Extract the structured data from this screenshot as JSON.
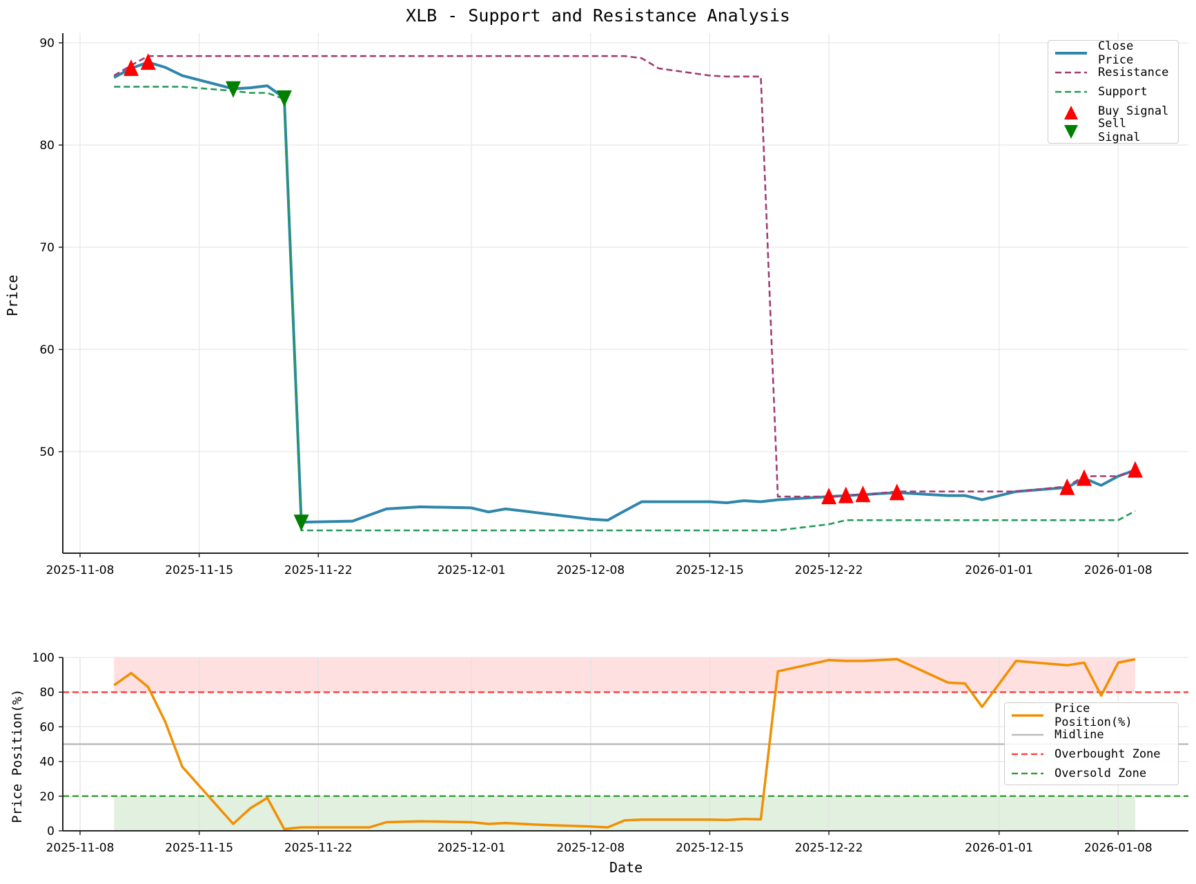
{
  "chart_data": [
    {
      "type": "line",
      "title": "XLB - Support and Resistance Analysis",
      "xlabel": "",
      "ylabel": "Price",
      "ylim": [
        40.1,
        91.0
      ],
      "yticks": [
        50,
        60,
        70,
        80,
        90
      ],
      "xticks": [
        "2025-11-08",
        "2025-11-15",
        "2025-11-22",
        "2025-12-01",
        "2025-12-08",
        "2025-12-15",
        "2025-12-22",
        "2026-01-01",
        "2026-01-08"
      ],
      "xlim": [
        "2025-11-07",
        "2026-01-12"
      ],
      "grid": true,
      "legend_position": "upper right",
      "x": [
        "2025-11-10",
        "2025-11-11",
        "2025-11-12",
        "2025-11-13",
        "2025-11-14",
        "2025-11-17",
        "2025-11-18",
        "2025-11-19",
        "2025-11-20",
        "2025-11-21",
        "2025-11-24",
        "2025-11-25",
        "2025-11-26",
        "2025-11-28",
        "2025-12-01",
        "2025-12-02",
        "2025-12-03",
        "2025-12-04",
        "2025-12-05",
        "2025-12-08",
        "2025-12-09",
        "2025-12-10",
        "2025-12-11",
        "2025-12-12",
        "2025-12-15",
        "2025-12-16",
        "2025-12-17",
        "2025-12-18",
        "2025-12-19",
        "2025-12-22",
        "2025-12-23",
        "2025-12-24",
        "2025-12-26",
        "2025-12-29",
        "2025-12-30",
        "2025-12-31",
        "2026-01-02",
        "2026-01-05",
        "2026-01-06",
        "2026-01-07",
        "2026-01-08",
        "2026-01-09"
      ],
      "series": [
        {
          "name": "Close Price",
          "color": "#2E86AB",
          "style": "solid",
          "values": [
            86.6,
            87.5,
            88.1,
            87.6,
            86.8,
            85.5,
            85.6,
            85.8,
            84.6,
            43.1,
            43.2,
            43.8,
            44.4,
            44.6,
            44.5,
            44.1,
            44.4,
            44.2,
            44.0,
            43.4,
            43.3,
            44.2,
            45.1,
            45.1,
            45.1,
            45.0,
            45.2,
            45.1,
            45.3,
            45.6,
            45.7,
            45.8,
            46.0,
            45.7,
            45.7,
            45.3,
            46.1,
            46.5,
            47.4,
            46.7,
            47.6,
            48.2
          ]
        },
        {
          "name": "Resistance",
          "color": "#A23B72",
          "style": "dashed",
          "values": [
            86.8,
            87.8,
            88.7,
            88.7,
            88.7,
            88.7,
            88.7,
            88.7,
            88.7,
            88.7,
            88.7,
            88.7,
            88.7,
            88.7,
            88.7,
            88.7,
            88.7,
            88.7,
            88.7,
            88.7,
            88.7,
            88.7,
            88.5,
            87.5,
            86.8,
            86.7,
            86.7,
            86.7,
            45.6,
            45.6,
            45.7,
            45.8,
            46.1,
            46.1,
            46.1,
            46.1,
            46.1,
            46.6,
            47.6,
            47.6,
            47.6,
            48.2
          ]
        },
        {
          "name": "Support",
          "color": "#239B56",
          "style": "dashed",
          "values": [
            85.7,
            85.7,
            85.7,
            85.7,
            85.7,
            85.3,
            85.1,
            85.1,
            84.5,
            42.3,
            42.3,
            42.3,
            42.3,
            42.3,
            42.3,
            42.3,
            42.3,
            42.3,
            42.3,
            42.3,
            42.3,
            42.3,
            42.3,
            42.3,
            42.3,
            42.3,
            42.3,
            42.3,
            42.3,
            42.9,
            43.3,
            43.3,
            43.3,
            43.3,
            43.3,
            43.3,
            43.3,
            43.3,
            43.3,
            43.3,
            43.3,
            44.2
          ]
        }
      ],
      "markers": [
        {
          "name": "Buy Signal",
          "color": "#FF0000",
          "shape": "triangle-up",
          "points": [
            [
              "2025-11-11",
              87.5
            ],
            [
              "2025-11-12",
              88.1
            ],
            [
              "2025-12-22",
              45.6
            ],
            [
              "2025-12-23",
              45.7
            ],
            [
              "2025-12-24",
              45.8
            ],
            [
              "2025-12-26",
              46.0
            ],
            [
              "2026-01-05",
              46.5
            ],
            [
              "2026-01-06",
              47.4
            ],
            [
              "2026-01-09",
              48.2
            ]
          ]
        },
        {
          "name": "Sell Signal",
          "color": "#008000",
          "shape": "triangle-down",
          "points": [
            [
              "2025-11-17",
              85.5
            ],
            [
              "2025-11-20",
              84.6
            ],
            [
              "2025-11-21",
              43.1
            ]
          ]
        }
      ],
      "legend": [
        "Close Price",
        "Resistance",
        "Support",
        "Buy Signal",
        "Sell Signal"
      ]
    },
    {
      "type": "line",
      "title": "",
      "xlabel": "Date",
      "ylabel": "Price Position(%)",
      "ylim": [
        0,
        100
      ],
      "yticks": [
        0,
        20,
        40,
        60,
        80,
        100
      ],
      "xticks": [
        "2025-11-08",
        "2025-11-15",
        "2025-11-22",
        "2025-12-01",
        "2025-12-08",
        "2025-12-15",
        "2025-12-22",
        "2026-01-01",
        "2026-01-08"
      ],
      "grid": true,
      "legend_position": "center right",
      "series": [
        {
          "name": "Price Position(%)",
          "color": "#F18F01",
          "style": "solid",
          "values": [
            84,
            91,
            83,
            63,
            37,
            4,
            13,
            19,
            1,
            2,
            2,
            2,
            5,
            5.5,
            5,
            4,
            4.5,
            4,
            3.5,
            2.5,
            2,
            6,
            6.5,
            6.5,
            6.5,
            6.3,
            6.8,
            6.6,
            92,
            98.5,
            98,
            98,
            99,
            85.5,
            85,
            71.5,
            98,
            95.5,
            97,
            78,
            97,
            99
          ]
        },
        {
          "name": "Midline",
          "color": "#BBBBBB",
          "style": "solid",
          "constant": 50
        },
        {
          "name": "Overbought Zone",
          "color": "#FF4040",
          "style": "dashed",
          "constant": 80
        },
        {
          "name": "Oversold Zone",
          "color": "#3A9E3A",
          "style": "dashed",
          "constant": 20
        }
      ],
      "shaded_regions": [
        {
          "from": 80,
          "to": 100,
          "color": "#FFE0E0"
        },
        {
          "from": 0,
          "to": 20,
          "color": "#E2F0E0"
        }
      ],
      "legend": [
        "Price Position(%)",
        "Midline",
        "Overbought Zone",
        "Oversold Zone"
      ]
    }
  ],
  "labels": {
    "title": "XLB - Support and Resistance Analysis",
    "top_ylabel": "Price",
    "bottom_ylabel": "Price Position(%)",
    "bottom_xlabel": "Date"
  }
}
